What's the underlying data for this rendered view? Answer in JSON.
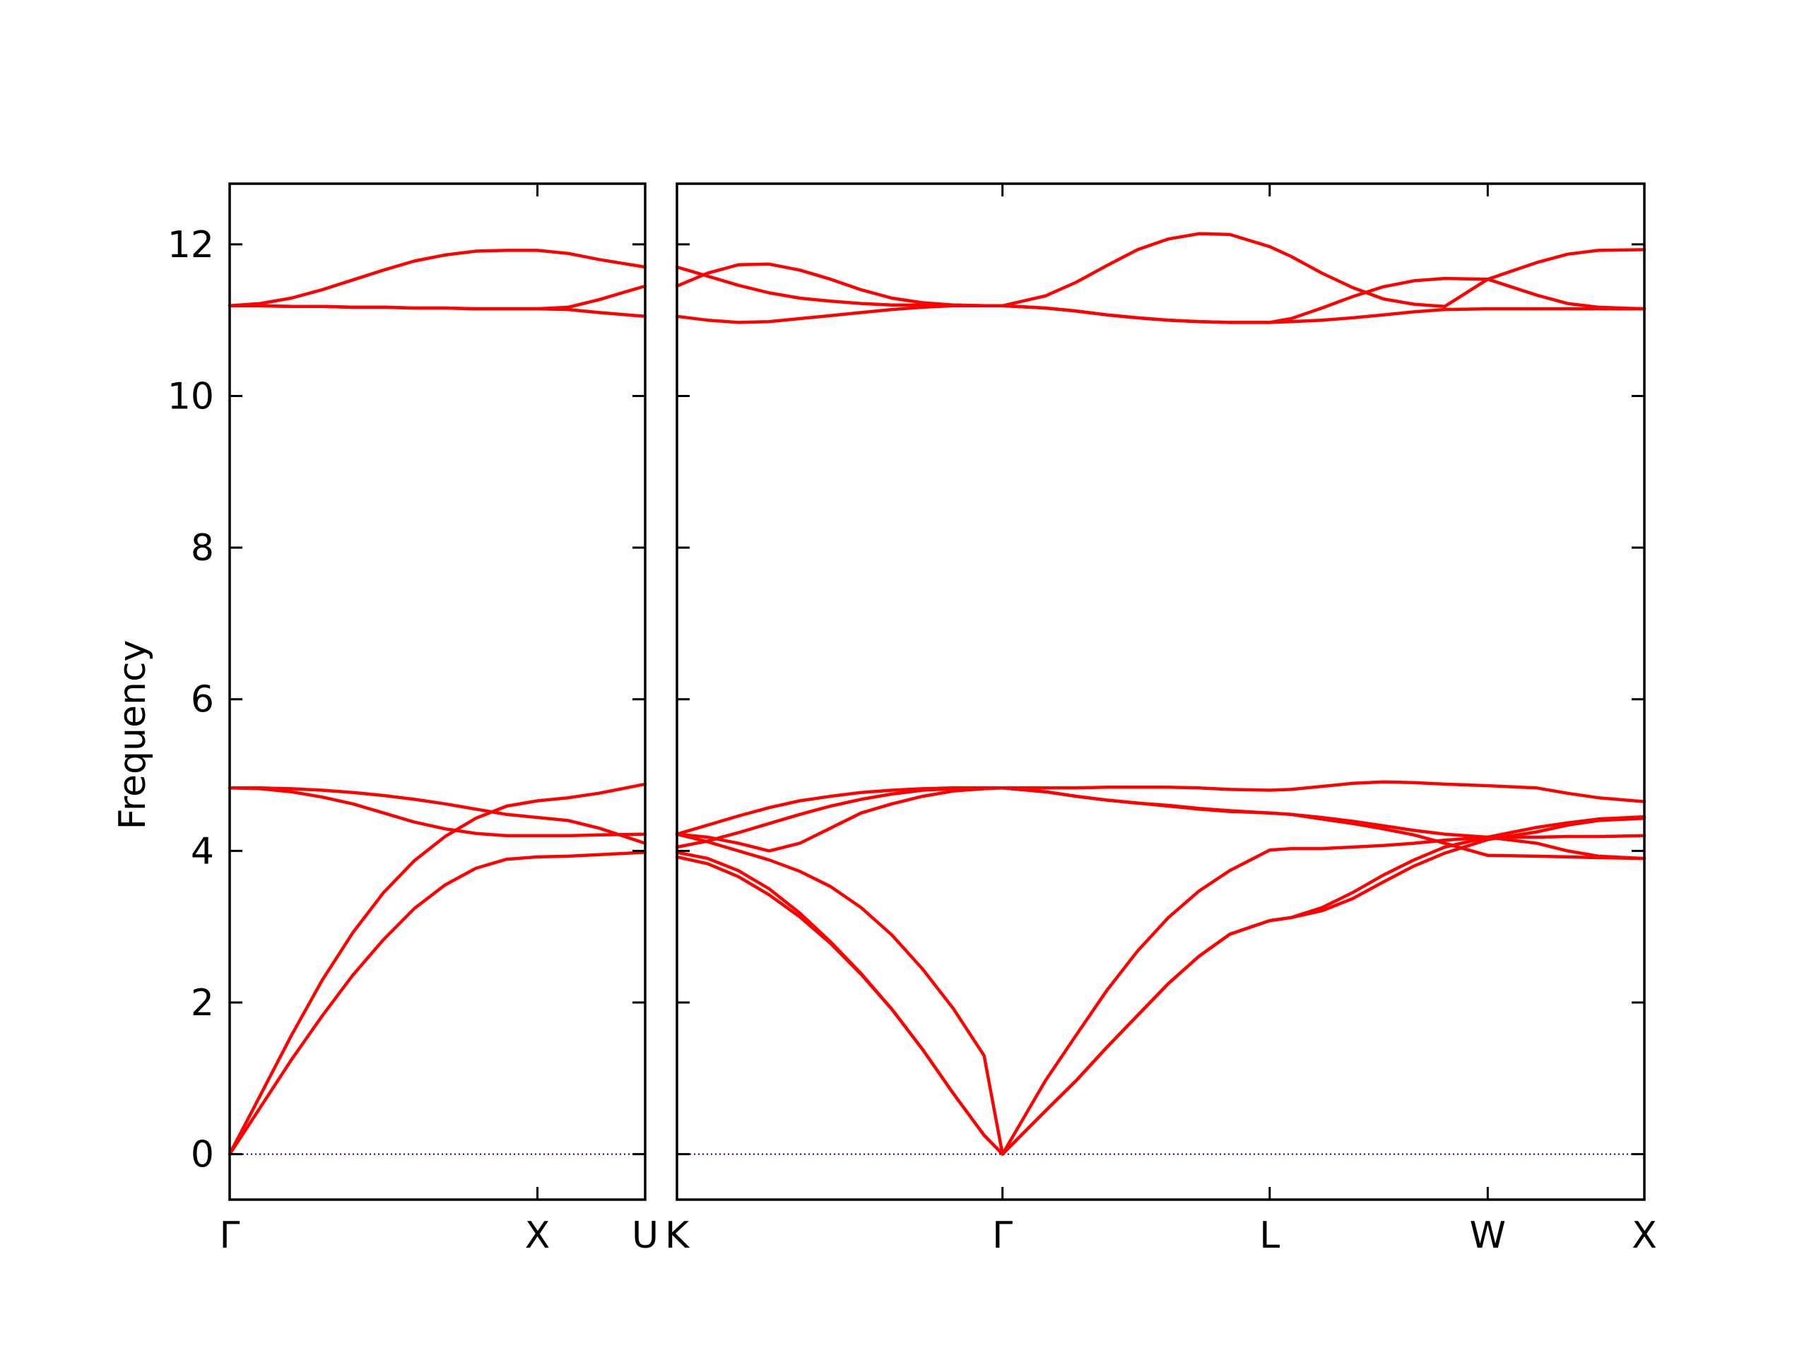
{
  "chart_data": {
    "type": "line",
    "ylabel": "Frequency",
    "ylim": [
      -0.6,
      12.8
    ],
    "yticks": [
      0,
      2,
      4,
      6,
      8,
      10,
      12
    ],
    "line_color": "#ff0000",
    "zero_line_color": "#0000aa",
    "panels": [
      {
        "xlim": [
          0,
          1.35
        ],
        "xticks": [
          {
            "x": 0,
            "label": "Γ"
          },
          {
            "x": 1.0,
            "label": "X"
          },
          {
            "x": 1.35,
            "label": "U"
          }
        ],
        "x": [
          0.0,
          0.1,
          0.2,
          0.3,
          0.4,
          0.5,
          0.6,
          0.7,
          0.8,
          0.9,
          1.0,
          1.1,
          1.2,
          1.35
        ],
        "bands": [
          [
            0.0,
            0.62,
            1.24,
            1.82,
            2.36,
            2.83,
            3.24,
            3.55,
            3.77,
            3.89,
            3.92,
            3.93,
            3.95,
            3.98
          ],
          [
            0.0,
            0.78,
            1.56,
            2.29,
            2.92,
            3.45,
            3.87,
            4.19,
            4.43,
            4.59,
            4.66,
            4.7,
            4.76,
            4.88
          ],
          [
            4.83,
            4.82,
            4.78,
            4.71,
            4.62,
            4.5,
            4.38,
            4.29,
            4.23,
            4.2,
            4.2,
            4.2,
            4.21,
            4.22
          ],
          [
            4.83,
            4.83,
            4.82,
            4.8,
            4.77,
            4.73,
            4.68,
            4.62,
            4.55,
            4.48,
            4.44,
            4.4,
            4.3,
            4.1
          ],
          [
            11.19,
            11.19,
            11.18,
            11.18,
            11.17,
            11.17,
            11.16,
            11.16,
            11.15,
            11.15,
            11.15,
            11.14,
            11.1,
            11.05
          ],
          [
            11.19,
            11.22,
            11.29,
            11.4,
            11.53,
            11.66,
            11.78,
            11.86,
            11.91,
            11.92,
            11.92,
            11.88,
            11.8,
            11.7
          ],
          [
            11.19,
            11.19,
            11.18,
            11.18,
            11.17,
            11.17,
            11.16,
            11.16,
            11.15,
            11.15,
            11.15,
            11.17,
            11.27,
            11.45
          ]
        ]
      },
      {
        "xlim": [
          0,
          3.15
        ],
        "xticks": [
          {
            "x": 0,
            "label": "K"
          },
          {
            "x": 1.06,
            "label": "Γ"
          },
          {
            "x": 1.93,
            "label": "L"
          },
          {
            "x": 2.64,
            "label": "W"
          },
          {
            "x": 3.15,
            "label": "X"
          }
        ],
        "x": [
          0.0,
          0.1,
          0.2,
          0.3,
          0.4,
          0.5,
          0.6,
          0.7,
          0.8,
          0.9,
          1.0,
          1.06,
          1.2,
          1.3,
          1.4,
          1.5,
          1.6,
          1.7,
          1.8,
          1.93,
          2.0,
          2.1,
          2.2,
          2.3,
          2.4,
          2.5,
          2.64,
          2.8,
          2.9,
          3.0,
          3.15
        ],
        "bands": [
          [
            3.92,
            3.83,
            3.66,
            3.42,
            3.13,
            2.78,
            2.37,
            1.91,
            1.38,
            0.8,
            0.25,
            0.0,
            0.57,
            0.97,
            1.41,
            1.83,
            2.25,
            2.61,
            2.9,
            3.08,
            3.12,
            3.25,
            3.45,
            3.68,
            3.88,
            4.05,
            4.18,
            4.31,
            4.37,
            4.42,
            4.45
          ],
          [
            3.98,
            3.9,
            3.74,
            3.5,
            3.18,
            2.8,
            2.38,
            1.91,
            1.38,
            0.8,
            0.25,
            0.0,
            0.57,
            0.97,
            1.41,
            1.83,
            2.25,
            2.61,
            2.9,
            3.08,
            3.12,
            3.21,
            3.37,
            3.59,
            3.8,
            3.97,
            4.15,
            4.25,
            4.34,
            4.4,
            4.43
          ],
          [
            4.05,
            4.13,
            4.24,
            4.36,
            4.48,
            4.59,
            4.68,
            4.75,
            4.8,
            4.82,
            4.83,
            4.83,
            4.83,
            4.83,
            4.84,
            4.84,
            4.84,
            4.83,
            4.81,
            4.8,
            4.81,
            4.85,
            4.89,
            4.91,
            4.9,
            4.88,
            4.86,
            4.83,
            4.76,
            4.7,
            4.65
          ],
          [
            4.22,
            4.12,
            4.0,
            3.88,
            3.73,
            3.53,
            3.25,
            2.89,
            2.44,
            1.92,
            1.3,
            0.0,
            0.97,
            1.57,
            2.16,
            2.68,
            3.12,
            3.47,
            3.74,
            4.01,
            4.03,
            4.03,
            4.05,
            4.07,
            4.1,
            4.14,
            4.18,
            4.18,
            4.19,
            4.19,
            4.2
          ],
          [
            4.22,
            4.34,
            4.46,
            4.57,
            4.66,
            4.72,
            4.77,
            4.8,
            4.82,
            4.83,
            4.83,
            4.83,
            4.78,
            4.72,
            4.67,
            4.63,
            4.59,
            4.55,
            4.52,
            4.5,
            4.48,
            4.44,
            4.39,
            4.33,
            4.27,
            4.22,
            4.18,
            4.1,
            4.0,
            3.93,
            3.9
          ],
          [
            4.22,
            4.18,
            4.1,
            4.0,
            4.1,
            4.3,
            4.5,
            4.62,
            4.72,
            4.79,
            4.82,
            4.83,
            4.78,
            4.72,
            4.67,
            4.63,
            4.6,
            4.56,
            4.53,
            4.5,
            4.48,
            4.42,
            4.36,
            4.29,
            4.21,
            4.1,
            3.94,
            3.93,
            3.92,
            3.91,
            3.9
          ],
          [
            11.05,
            11.0,
            10.97,
            10.98,
            11.02,
            11.06,
            11.1,
            11.14,
            11.17,
            11.19,
            11.19,
            11.19,
            11.16,
            11.12,
            11.07,
            11.03,
            11.0,
            10.98,
            10.97,
            10.97,
            10.98,
            11.0,
            11.03,
            11.07,
            11.11,
            11.14,
            11.15,
            11.15,
            11.15,
            11.15,
            11.15
          ],
          [
            11.45,
            11.62,
            11.73,
            11.74,
            11.66,
            11.54,
            11.4,
            11.29,
            11.23,
            11.2,
            11.19,
            11.19,
            11.32,
            11.5,
            11.72,
            11.93,
            12.07,
            12.14,
            12.13,
            11.97,
            11.84,
            11.62,
            11.43,
            11.28,
            11.21,
            11.18,
            11.54,
            11.76,
            11.87,
            11.92,
            11.93
          ],
          [
            11.7,
            11.58,
            11.46,
            11.36,
            11.29,
            11.25,
            11.22,
            11.2,
            11.2,
            11.2,
            11.19,
            11.19,
            11.16,
            11.12,
            11.07,
            11.03,
            11.0,
            10.98,
            10.97,
            10.97,
            11.02,
            11.16,
            11.31,
            11.44,
            11.52,
            11.55,
            11.54,
            11.33,
            11.22,
            11.17,
            11.15
          ]
        ]
      }
    ]
  }
}
